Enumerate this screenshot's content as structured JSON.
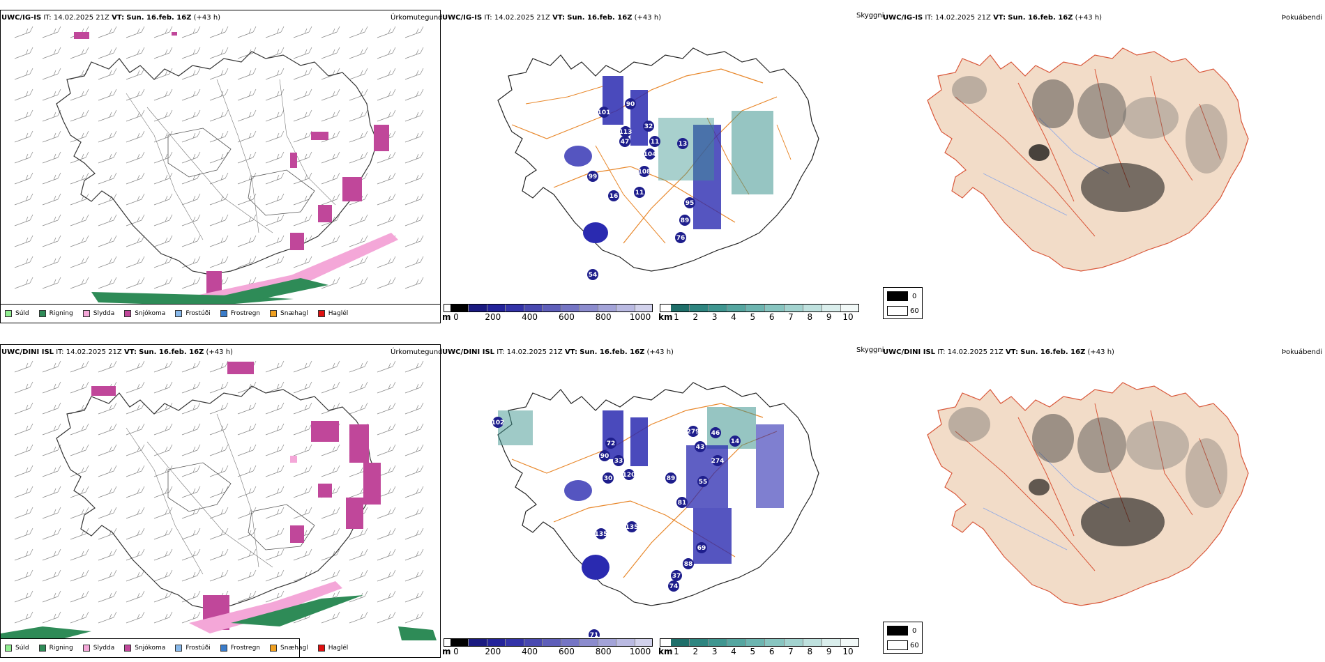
{
  "rows": [
    {
      "model": "UWC/IG-IS",
      "it_label": "IT:",
      "it_value": "14.02.2025 21Z",
      "vt_label": "VT:",
      "vt_value": "Sun. 16.feb. 16Z",
      "lead": "(+43 h)",
      "visibility_labels": [
        "101",
        "90",
        "113",
        "47",
        "32",
        "11",
        "104",
        "99",
        "108",
        "11",
        "16",
        "95",
        "89",
        "76",
        "54",
        "13"
      ]
    },
    {
      "model": "UWC/DINI ISL",
      "it_label": "IT:",
      "it_value": "14.02.2025 21Z",
      "vt_label": "VT:",
      "vt_value": "Sun. 16.feb. 16Z",
      "lead": "(+43 h)",
      "visibility_labels": [
        "102",
        "72",
        "90",
        "33",
        "30",
        "120",
        "89",
        "279",
        "46",
        "43",
        "14",
        "274",
        "55",
        "81",
        "135",
        "135",
        "69",
        "88",
        "37",
        "74",
        "71"
      ]
    }
  ],
  "panel_names": {
    "precip": "Úrkomutegund",
    "visibility": "Skyggni",
    "fog": "Þokuábendi"
  },
  "precip_legend": [
    {
      "label": "Súld",
      "color": "#90ee90"
    },
    {
      "label": "Rigning",
      "color": "#2e8b57"
    },
    {
      "label": "Slydda",
      "color": "#f4a7d8"
    },
    {
      "label": "Snjókoma",
      "color": "#c0479a"
    },
    {
      "label": "Frostúði",
      "color": "#87b8ea"
    },
    {
      "label": "Frostregn",
      "color": "#3a7cc9"
    },
    {
      "label": "Snæhagl",
      "color": "#f0a020"
    },
    {
      "label": "Haglél",
      "color": "#e01010"
    }
  ],
  "ceiling_bar": {
    "unit": "m",
    "ticks": [
      "0",
      "200",
      "400",
      "600",
      "800",
      "1000"
    ],
    "colors": [
      "#000000",
      "#1a1a80",
      "#23239a",
      "#3333a8",
      "#4949b0",
      "#5f5fba",
      "#7575c4",
      "#8c8cce",
      "#a3a3d8",
      "#babae2",
      "#d2d2ec"
    ]
  },
  "vis_bar": {
    "unit": "km",
    "ticks": [
      "1",
      "2",
      "3",
      "4",
      "5",
      "6",
      "7",
      "8",
      "9",
      "10"
    ],
    "colors": [
      "#1f6f6a",
      "#2e8580",
      "#3f9690",
      "#55a6a0",
      "#6db5b0",
      "#88c5c0",
      "#a3d3cf",
      "#bfe1de",
      "#daeeec",
      "#f2f9f8"
    ]
  },
  "fog_legend": [
    {
      "label": "0",
      "color": "#000000"
    },
    {
      "label": "60",
      "color": "#ffffff"
    }
  ]
}
